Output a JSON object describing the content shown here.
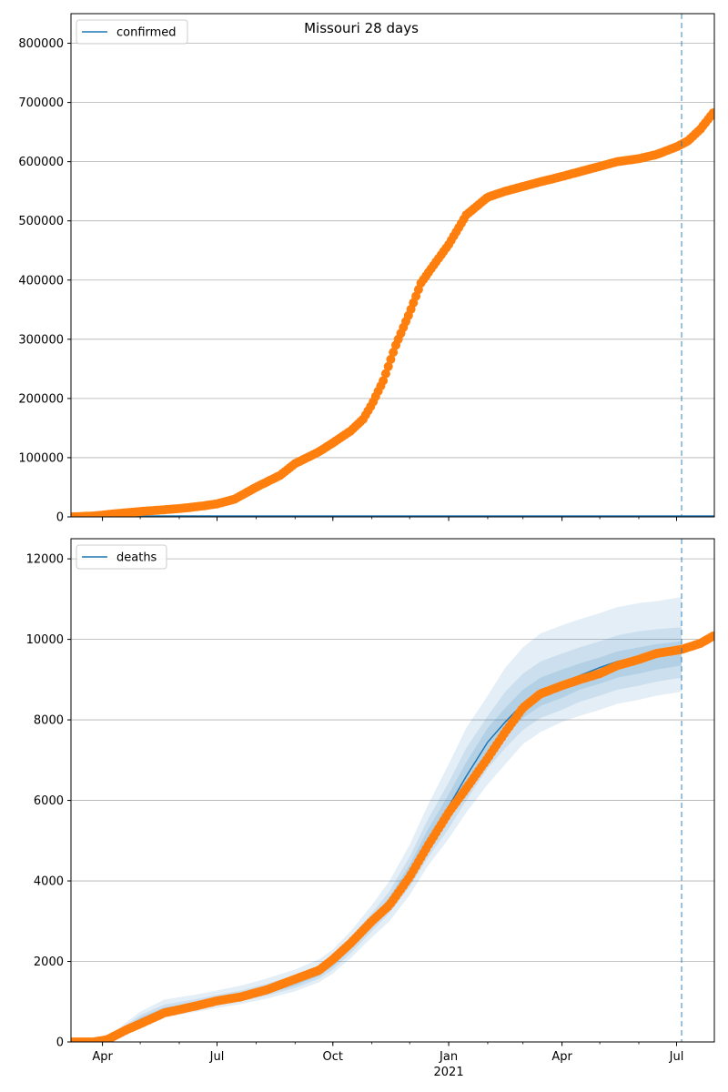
{
  "figure": {
    "title": "Missouri 28 days",
    "colors": {
      "observed": "#ff7f0e",
      "model": "#1f77b4",
      "band": "#1f77b4",
      "grid": "#b0b0b0",
      "vline": "#1f77b4"
    }
  },
  "chart_data": [
    {
      "type": "scatter",
      "legend": "confirmed",
      "legend_position": "top-left",
      "grid": "horizontal",
      "xlim": [
        "2020-03-07",
        "2021-07-31"
      ],
      "ylim": [
        0,
        850000
      ],
      "y_ticks": [
        0,
        100000,
        200000,
        300000,
        400000,
        500000,
        600000,
        700000,
        800000
      ],
      "x_ticks": [
        {
          "date": "2020-04-01",
          "label": "Apr"
        },
        {
          "date": "2020-07-01",
          "label": "Jul"
        },
        {
          "date": "2020-10-01",
          "label": "Oct"
        },
        {
          "date": "2021-01-01",
          "label": "Jan"
        },
        {
          "date": "2021-04-01",
          "label": "Apr"
        },
        {
          "date": "2021-07-01",
          "label": "Jul"
        }
      ],
      "x_year_label": {
        "date": "2021-01-01",
        "label": "2021"
      },
      "forecast_start": "2021-07-05",
      "series": [
        {
          "kind": "observed",
          "x": [
            "2020-03-07",
            "2020-03-25",
            "2020-04-10",
            "2020-05-01",
            "2020-06-01",
            "2020-06-20",
            "2020-07-01",
            "2020-07-15",
            "2020-08-01",
            "2020-08-20",
            "2020-09-01",
            "2020-09-20",
            "2020-10-01",
            "2020-10-15",
            "2020-10-25",
            "2020-11-01",
            "2020-11-10",
            "2020-11-20",
            "2020-12-01",
            "2020-12-10",
            "2020-12-20",
            "2021-01-01",
            "2021-01-15",
            "2021-02-01",
            "2021-02-15",
            "2021-03-01",
            "2021-03-15",
            "2021-04-01",
            "2021-04-15",
            "2021-05-01",
            "2021-05-15",
            "2021-06-01",
            "2021-06-15",
            "2021-07-01",
            "2021-07-10",
            "2021-07-20",
            "2021-07-31"
          ],
          "y": [
            0,
            1500,
            5000,
            9000,
            14000,
            18500,
            22000,
            30000,
            50000,
            70000,
            90000,
            110000,
            125000,
            145000,
            165000,
            190000,
            230000,
            290000,
            345000,
            395000,
            425000,
            460000,
            510000,
            540000,
            550000,
            558000,
            566000,
            575000,
            583000,
            592000,
            600000,
            605000,
            612000,
            625000,
            635000,
            655000,
            685000
          ]
        }
      ]
    },
    {
      "type": "scatter",
      "legend": "deaths",
      "legend_position": "top-left",
      "grid": "horizontal",
      "xlim": [
        "2020-03-07",
        "2021-07-31"
      ],
      "ylim": [
        0,
        12500
      ],
      "y_ticks": [
        0,
        2000,
        4000,
        6000,
        8000,
        10000,
        12000
      ],
      "x_ticks": [
        {
          "date": "2020-04-01",
          "label": "Apr"
        },
        {
          "date": "2020-07-01",
          "label": "Jul"
        },
        {
          "date": "2020-10-01",
          "label": "Oct"
        },
        {
          "date": "2021-01-01",
          "label": "Jan"
        },
        {
          "date": "2021-04-01",
          "label": "Apr"
        },
        {
          "date": "2021-07-01",
          "label": "Jul"
        }
      ],
      "x_year_label": {
        "date": "2021-01-01",
        "label": "2021"
      },
      "forecast_start": "2021-07-05",
      "series": [
        {
          "kind": "model",
          "x": [
            "2020-03-07",
            "2020-03-25",
            "2020-04-10",
            "2020-05-01",
            "2020-05-20",
            "2020-06-15",
            "2020-07-01",
            "2020-07-20",
            "2020-08-10",
            "2020-09-01",
            "2020-09-20",
            "2020-10-01",
            "2020-10-15",
            "2020-11-01",
            "2020-11-15",
            "2020-12-01",
            "2020-12-15",
            "2021-01-01",
            "2021-01-15",
            "2021-02-01",
            "2021-02-15",
            "2021-03-01",
            "2021-03-15",
            "2021-04-01",
            "2021-04-15",
            "2021-05-01",
            "2021-05-15",
            "2021-06-01",
            "2021-06-15",
            "2021-07-05",
            "2021-07-20",
            "2021-07-31"
          ],
          "y": [
            0,
            0,
            150,
            550,
            800,
            930,
            1020,
            1120,
            1280,
            1480,
            1720,
            1960,
            2380,
            2950,
            3450,
            4200,
            5000,
            5850,
            6600,
            7450,
            7950,
            8400,
            8700,
            8900,
            9100,
            9300,
            9450,
            9550,
            9650,
            9750,
            9900,
            10100
          ]
        },
        {
          "kind": "band_outer",
          "x": [
            "2020-04-10",
            "2020-05-01",
            "2020-05-20",
            "2020-06-15",
            "2020-07-01",
            "2020-07-20",
            "2020-08-10",
            "2020-09-01",
            "2020-09-20",
            "2020-10-01",
            "2020-10-15",
            "2020-11-01",
            "2020-11-15",
            "2020-12-01",
            "2020-12-15",
            "2021-01-01",
            "2021-01-15",
            "2021-02-01",
            "2021-02-15",
            "2021-03-01",
            "2021-03-15",
            "2021-04-01",
            "2021-04-15",
            "2021-05-01",
            "2021-05-15",
            "2021-06-01",
            "2021-06-15",
            "2021-07-05"
          ],
          "upper": [
            250,
            750,
            1050,
            1180,
            1280,
            1400,
            1580,
            1800,
            2050,
            2300,
            2750,
            3400,
            4000,
            4900,
            5850,
            6900,
            7800,
            8600,
            9300,
            9800,
            10150,
            10350,
            10500,
            10650,
            10800,
            10900,
            10950,
            11050
          ],
          "lower": [
            100,
            400,
            620,
            750,
            840,
            940,
            1080,
            1260,
            1480,
            1700,
            2080,
            2600,
            3000,
            3650,
            4350,
            5050,
            5700,
            6400,
            6900,
            7400,
            7700,
            7950,
            8100,
            8250,
            8400,
            8500,
            8600,
            8700
          ]
        },
        {
          "kind": "band_mid",
          "x": [
            "2020-04-10",
            "2020-05-01",
            "2020-05-20",
            "2020-06-15",
            "2020-07-01",
            "2020-07-20",
            "2020-08-10",
            "2020-09-01",
            "2020-09-20",
            "2020-10-01",
            "2020-10-15",
            "2020-11-01",
            "2020-11-15",
            "2020-12-01",
            "2020-12-15",
            "2021-01-01",
            "2021-01-15",
            "2021-02-01",
            "2021-02-15",
            "2021-03-01",
            "2021-03-15",
            "2021-04-01",
            "2021-04-15",
            "2021-05-01",
            "2021-05-15",
            "2021-06-01",
            "2021-06-15",
            "2021-07-05"
          ],
          "upper": [
            210,
            670,
            930,
            1070,
            1170,
            1280,
            1450,
            1660,
            1900,
            2150,
            2600,
            3200,
            3750,
            4600,
            5500,
            6450,
            7300,
            8100,
            8700,
            9150,
            9450,
            9650,
            9800,
            9950,
            10100,
            10200,
            10250,
            10300
          ],
          "lower": [
            120,
            460,
            700,
            820,
            910,
            1010,
            1160,
            1340,
            1570,
            1800,
            2200,
            2750,
            3200,
            3850,
            4550,
            5300,
            6000,
            6800,
            7300,
            7750,
            8050,
            8250,
            8450,
            8600,
            8750,
            8850,
            8950,
            9050
          ]
        },
        {
          "kind": "band_inner",
          "x": [
            "2020-04-10",
            "2020-05-01",
            "2020-05-20",
            "2020-06-15",
            "2020-07-01",
            "2020-07-20",
            "2020-08-10",
            "2020-09-01",
            "2020-09-20",
            "2020-10-01",
            "2020-10-15",
            "2020-11-01",
            "2020-11-15",
            "2020-12-01",
            "2020-12-15",
            "2021-01-01",
            "2021-01-15",
            "2021-02-01",
            "2021-02-15",
            "2021-03-01",
            "2021-03-15",
            "2021-04-01",
            "2021-04-15",
            "2021-05-01",
            "2021-05-15",
            "2021-06-01",
            "2021-06-15",
            "2021-07-05"
          ],
          "upper": [
            180,
            610,
            860,
            990,
            1090,
            1200,
            1370,
            1570,
            1810,
            2050,
            2480,
            3080,
            3600,
            4400,
            5250,
            6150,
            6950,
            7800,
            8300,
            8750,
            9050,
            9250,
            9400,
            9550,
            9700,
            9800,
            9880,
            9950
          ],
          "lower": [
            130,
            500,
            750,
            870,
            960,
            1060,
            1210,
            1400,
            1640,
            1880,
            2300,
            2850,
            3320,
            4020,
            4750,
            5550,
            6300,
            7100,
            7600,
            8050,
            8350,
            8550,
            8750,
            8900,
            9050,
            9150,
            9250,
            9350
          ]
        },
        {
          "kind": "observed",
          "x": [
            "2020-03-07",
            "2020-03-25",
            "2020-04-05",
            "2020-04-20",
            "2020-05-01",
            "2020-05-20",
            "2020-06-15",
            "2020-07-01",
            "2020-07-20",
            "2020-08-10",
            "2020-09-01",
            "2020-09-20",
            "2020-10-01",
            "2020-10-15",
            "2020-11-01",
            "2020-11-15",
            "2020-12-01",
            "2020-12-15",
            "2021-01-01",
            "2021-01-15",
            "2021-02-01",
            "2021-02-15",
            "2021-03-01",
            "2021-03-15",
            "2021-04-01",
            "2021-04-15",
            "2021-05-01",
            "2021-05-15",
            "2021-06-01",
            "2021-06-15",
            "2021-07-05",
            "2021-07-20",
            "2021-07-31"
          ],
          "y": [
            0,
            0,
            60,
            300,
            450,
            720,
            900,
            1020,
            1120,
            1300,
            1560,
            1780,
            2050,
            2450,
            3000,
            3400,
            4100,
            4850,
            5700,
            6300,
            7050,
            7700,
            8300,
            8650,
            8850,
            9000,
            9150,
            9350,
            9500,
            9650,
            9750,
            9900,
            10100
          ]
        }
      ]
    }
  ]
}
